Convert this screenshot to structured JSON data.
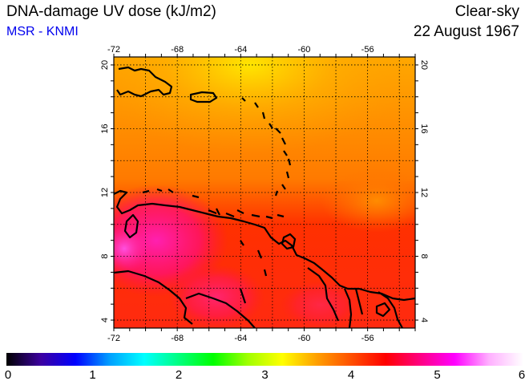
{
  "header": {
    "title": "DNA-damage UV dose (kJ/m2)",
    "subtitle": "MSR - KNMI",
    "condition": "Clear-sky",
    "date": "22 August 1967"
  },
  "map": {
    "lon_range": [
      -72,
      -53
    ],
    "lat_range": [
      3.5,
      20.5
    ],
    "lon_ticks": [
      "-72",
      "-68",
      "-64",
      "-60",
      "-56"
    ],
    "lat_ticks": [
      "4",
      "8",
      "12",
      "16",
      "20"
    ],
    "grid": true
  },
  "colorbar": {
    "range": [
      0,
      6
    ],
    "tick_labels": [
      "0",
      "1",
      "2",
      "3",
      "4",
      "5",
      "6"
    ],
    "colors": [
      "#000000",
      "#3c00a0",
      "#0000ff",
      "#00a0ff",
      "#00ffff",
      "#00ff80",
      "#00ff00",
      "#a0ff00",
      "#ffff00",
      "#ffa000",
      "#ff5000",
      "#ff0000",
      "#ff0080",
      "#ff00ff",
      "#ffb0ff",
      "#ffffff"
    ]
  }
}
